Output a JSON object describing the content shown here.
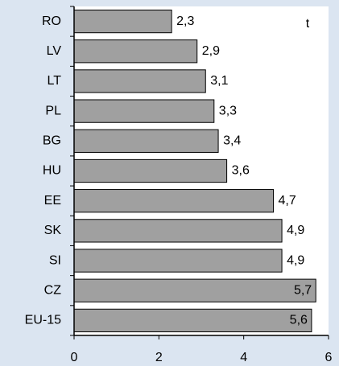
{
  "chart_data": {
    "type": "barh",
    "annotation": "t",
    "categories": [
      "RO",
      "LV",
      "LT",
      "PL",
      "BG",
      "HU",
      "EE",
      "SK",
      "SI",
      "CZ",
      "EU-15"
    ],
    "values": [
      2.3,
      2.9,
      3.1,
      3.3,
      3.4,
      3.6,
      4.7,
      4.9,
      4.9,
      5.7,
      5.6
    ],
    "value_labels": [
      "2,3",
      "2,9",
      "3,1",
      "3,3",
      "3,4",
      "3,6",
      "4,7",
      "4,9",
      "4,9",
      "5,7",
      "5,6"
    ],
    "color": "#a0a0a0",
    "xlim": [
      0,
      6
    ],
    "xticks": [
      0,
      2,
      4,
      6
    ],
    "grid": false
  }
}
